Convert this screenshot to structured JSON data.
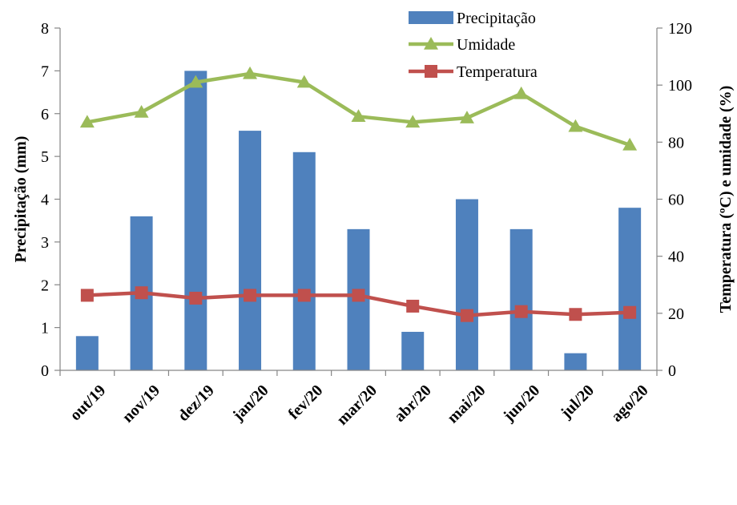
{
  "chart_data": {
    "type": "bar",
    "categories": [
      "out/19",
      "nov/19",
      "dez/19",
      "jan/20",
      "fev/20",
      "mar/20",
      "abr/20",
      "mai/20",
      "jun/20",
      "jul/20",
      "ago/20"
    ],
    "series": [
      {
        "name": "Precipitação",
        "type": "bar",
        "axis": "left",
        "color": "#4F81BD",
        "values": [
          0.8,
          3.6,
          7.0,
          5.6,
          5.1,
          3.3,
          0.9,
          4.0,
          3.3,
          0.4,
          3.8
        ]
      },
      {
        "name": "Umidade",
        "type": "line",
        "marker": "triangle",
        "axis": "right",
        "color": "#9BBB59",
        "values": [
          87,
          90.5,
          101,
          104,
          101,
          89,
          87,
          88.5,
          97,
          85.5,
          79
        ]
      },
      {
        "name": "Temperatura",
        "type": "line",
        "marker": "square",
        "axis": "right",
        "color": "#C0504D",
        "values": [
          26.3,
          27.2,
          25.3,
          26.3,
          26.3,
          26.3,
          22.5,
          19.2,
          20.6,
          19.6,
          20.3
        ]
      }
    ],
    "ylabel": "Precipitação (mm)",
    "ylim": [
      0,
      8
    ],
    "yticks": [
      "0",
      "1",
      "2",
      "3",
      "4",
      "5",
      "6",
      "7",
      "8"
    ],
    "y2label": "Temperatura (ºC) e umidade (%)",
    "y2lim": [
      0,
      120
    ],
    "y2ticks": [
      "0",
      "20",
      "40",
      "60",
      "80",
      "100",
      "120"
    ],
    "grid": false,
    "legend_position": "top-right"
  }
}
